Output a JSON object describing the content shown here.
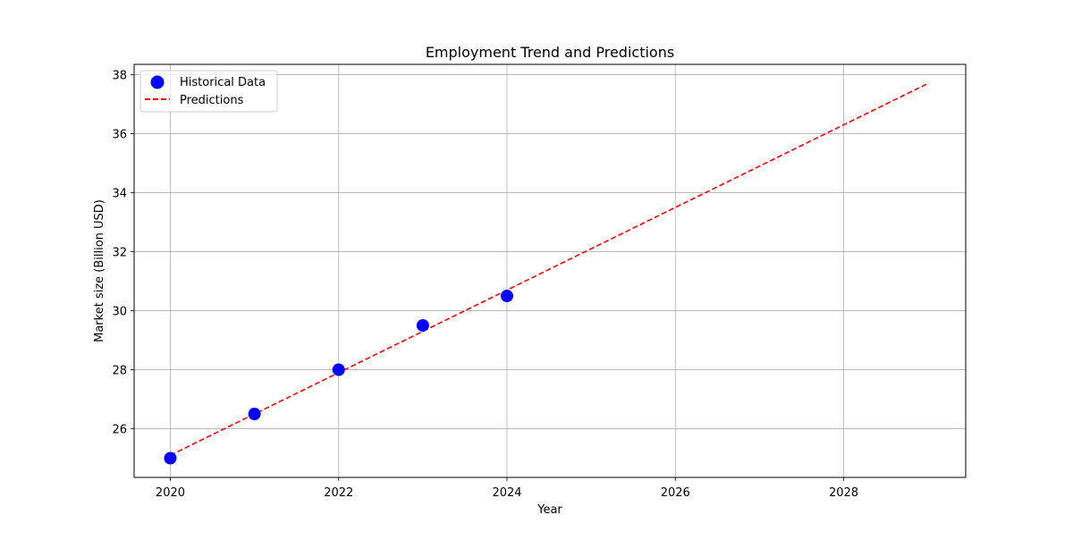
{
  "chart_data": {
    "type": "scatter",
    "title": "Employment Trend and Predictions",
    "xlabel": "Year",
    "ylabel": "Market size (Billion USD)",
    "xlim": [
      2019.57,
      2029.45
    ],
    "ylim": [
      24.35,
      38.35
    ],
    "x_ticks": [
      2020,
      2022,
      2024,
      2026,
      2028
    ],
    "y_ticks": [
      26,
      28,
      30,
      32,
      34,
      36,
      38
    ],
    "grid": true,
    "legend_position": "top-left",
    "series": [
      {
        "name": "Historical Data",
        "kind": "scatter",
        "color": "#0000ff",
        "x": [
          2020,
          2021,
          2022,
          2023,
          2024
        ],
        "y": [
          25.0,
          26.5,
          28.0,
          29.5,
          30.5
        ]
      },
      {
        "name": "Predictions",
        "kind": "line",
        "style": "dashed",
        "color": "#ff0000",
        "x": [
          2020,
          2029
        ],
        "y": [
          25.1,
          37.7
        ]
      }
    ]
  }
}
